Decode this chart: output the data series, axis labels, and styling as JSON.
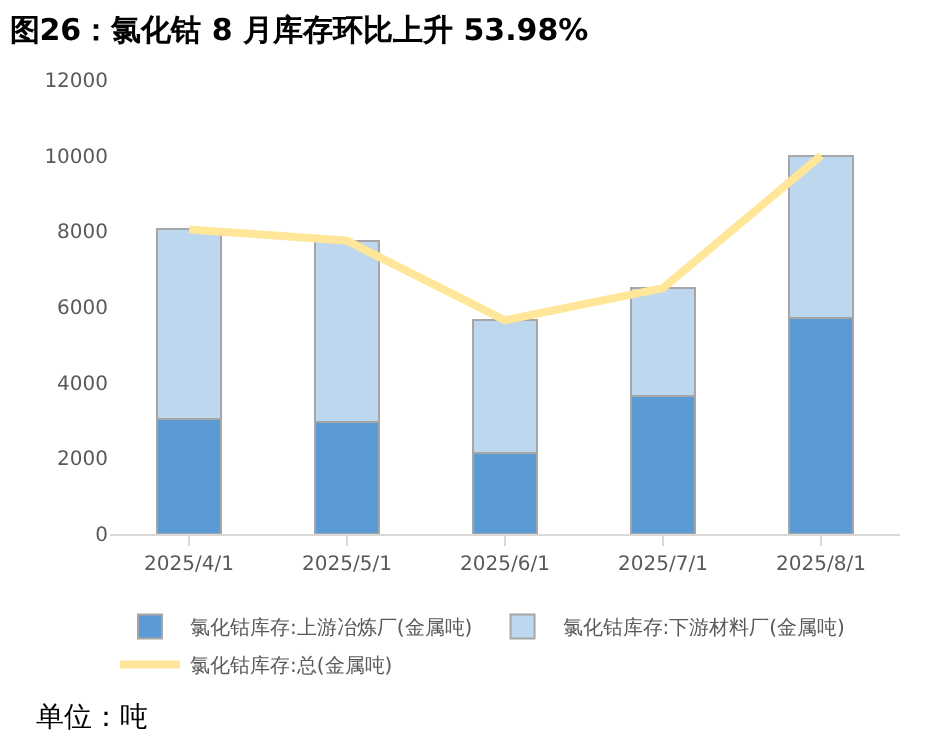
{
  "chart_data": {
    "type": "bar",
    "title": "图26：氯化钴 8 月库存环比上升 53.98%",
    "categories": [
      "2025/4/1",
      "2025/5/1",
      "2025/6/1",
      "2025/7/1",
      "2025/8/1"
    ],
    "stacked": true,
    "series": [
      {
        "name": "氯化钴库存:上游冶炼厂(金属吨)",
        "color": "#5b9bd5",
        "values": [
          3050,
          2950,
          2150,
          3650,
          5700
        ]
      },
      {
        "name": "氯化钴库存:下游材料厂(金属吨)",
        "color": "#bdd7ee",
        "values": [
          5000,
          4800,
          3500,
          2850,
          4300
        ]
      },
      {
        "name": "氯化钴库存:总(金属吨)",
        "type": "line",
        "color": "#ffe699",
        "values": [
          8050,
          7750,
          5650,
          6500,
          10000
        ]
      }
    ],
    "ylim": [
      0,
      12000
    ],
    "yticks": [
      0,
      2000,
      4000,
      6000,
      8000,
      10000,
      12000
    ],
    "grid": false,
    "legend": "bottom",
    "annotations": [
      "单位：吨"
    ]
  }
}
